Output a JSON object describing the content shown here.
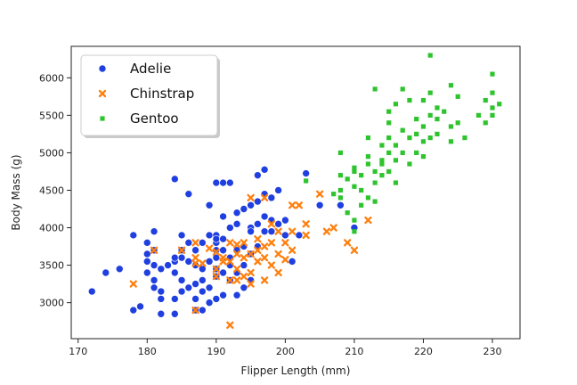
{
  "chart_data": {
    "type": "scatter",
    "xlabel": "Flipper Length (mm)",
    "ylabel": "Body Mass (g)",
    "xlim": [
      169,
      234
    ],
    "ylim": [
      2520,
      6420
    ],
    "xticks": [
      170,
      180,
      190,
      200,
      210,
      220,
      230
    ],
    "yticks": [
      3000,
      3500,
      4000,
      4500,
      5000,
      5500,
      6000
    ],
    "grid": false,
    "legend_placement": "top-left",
    "series": [
      {
        "name": "Adelie",
        "marker": "circle",
        "color": "#1f3fe0",
        "points": [
          [
            172,
            3150
          ],
          [
            174,
            3400
          ],
          [
            176,
            3450
          ],
          [
            178,
            3900
          ],
          [
            178,
            2900
          ],
          [
            179,
            2950
          ],
          [
            180,
            3800
          ],
          [
            180,
            3650
          ],
          [
            180,
            3550
          ],
          [
            180,
            3400
          ],
          [
            181,
            3500
          ],
          [
            181,
            3950
          ],
          [
            181,
            3700
          ],
          [
            181,
            3300
          ],
          [
            181,
            3200
          ],
          [
            182,
            3050
          ],
          [
            182,
            3450
          ],
          [
            182,
            3150
          ],
          [
            182,
            2850
          ],
          [
            183,
            3500
          ],
          [
            184,
            3550
          ],
          [
            184,
            3600
          ],
          [
            184,
            4650
          ],
          [
            184,
            3400
          ],
          [
            184,
            3050
          ],
          [
            184,
            2850
          ],
          [
            185,
            3700
          ],
          [
            185,
            3300
          ],
          [
            185,
            3900
          ],
          [
            185,
            3600
          ],
          [
            185,
            3150
          ],
          [
            186,
            4450
          ],
          [
            186,
            3800
          ],
          [
            186,
            3550
          ],
          [
            186,
            3200
          ],
          [
            187,
            3500
          ],
          [
            187,
            3700
          ],
          [
            187,
            3250
          ],
          [
            187,
            3050
          ],
          [
            187,
            2900
          ],
          [
            188,
            3800
          ],
          [
            188,
            3450
          ],
          [
            188,
            3300
          ],
          [
            188,
            3150
          ],
          [
            188,
            2900
          ],
          [
            189,
            4300
          ],
          [
            189,
            3550
          ],
          [
            189,
            3900
          ],
          [
            189,
            3200
          ],
          [
            189,
            3000
          ],
          [
            190,
            3900
          ],
          [
            190,
            3800
          ],
          [
            190,
            3700
          ],
          [
            190,
            3600
          ],
          [
            190,
            3450
          ],
          [
            190,
            3350
          ],
          [
            190,
            3050
          ],
          [
            190,
            3850
          ],
          [
            190,
            4600
          ],
          [
            191,
            4600
          ],
          [
            191,
            4150
          ],
          [
            191,
            3850
          ],
          [
            191,
            3700
          ],
          [
            191,
            3400
          ],
          [
            191,
            3100
          ],
          [
            192,
            4000
          ],
          [
            192,
            3600
          ],
          [
            192,
            3500
          ],
          [
            192,
            3300
          ],
          [
            192,
            4600
          ],
          [
            193,
            4050
          ],
          [
            193,
            3700
          ],
          [
            193,
            3400
          ],
          [
            193,
            3100
          ],
          [
            193,
            4200
          ],
          [
            194,
            4250
          ],
          [
            194,
            3750
          ],
          [
            194,
            3500
          ],
          [
            194,
            3200
          ],
          [
            195,
            4300
          ],
          [
            195,
            4000
          ],
          [
            195,
            3950
          ],
          [
            195,
            3650
          ],
          [
            195,
            3300
          ],
          [
            196,
            4350
          ],
          [
            196,
            4050
          ],
          [
            196,
            3750
          ],
          [
            196,
            4700
          ],
          [
            197,
            4450
          ],
          [
            197,
            4150
          ],
          [
            197,
            3950
          ],
          [
            197,
            4775
          ],
          [
            198,
            4400
          ],
          [
            198,
            4100
          ],
          [
            198,
            3950
          ],
          [
            199,
            4050
          ],
          [
            199,
            4500
          ],
          [
            200,
            3900
          ],
          [
            200,
            4100
          ],
          [
            201,
            3550
          ],
          [
            202,
            3900
          ],
          [
            203,
            4725
          ],
          [
            205,
            4300
          ],
          [
            210,
            4000
          ],
          [
            208,
            4300
          ]
        ]
      },
      {
        "name": "Chinstrap",
        "marker": "x",
        "color": "#ff7f0e",
        "points": [
          [
            178,
            3250
          ],
          [
            181,
            3700
          ],
          [
            185,
            3700
          ],
          [
            187,
            2900
          ],
          [
            187,
            3525
          ],
          [
            187,
            3600
          ],
          [
            187,
            3800
          ],
          [
            188,
            3525
          ],
          [
            189,
            3725
          ],
          [
            190,
            3450
          ],
          [
            190,
            3350
          ],
          [
            190,
            3675
          ],
          [
            191,
            3600
          ],
          [
            191,
            3550
          ],
          [
            192,
            3300
          ],
          [
            192,
            2700
          ],
          [
            192,
            3550
          ],
          [
            192,
            3800
          ],
          [
            193,
            3650
          ],
          [
            193,
            3775
          ],
          [
            193,
            3450
          ],
          [
            193,
            3300
          ],
          [
            194,
            3800
          ],
          [
            194,
            3600
          ],
          [
            194,
            3350
          ],
          [
            195,
            3650
          ],
          [
            195,
            4400
          ],
          [
            195,
            3400
          ],
          [
            195,
            3250
          ],
          [
            196,
            3850
          ],
          [
            196,
            3550
          ],
          [
            196,
            3700
          ],
          [
            197,
            3600
          ],
          [
            197,
            3750
          ],
          [
            197,
            3300
          ],
          [
            197,
            4400
          ],
          [
            198,
            3800
          ],
          [
            198,
            4050
          ],
          [
            198,
            3500
          ],
          [
            199,
            3650
          ],
          [
            199,
            3400
          ],
          [
            199,
            3950
          ],
          [
            200,
            3800
          ],
          [
            200,
            3575
          ],
          [
            201,
            3950
          ],
          [
            201,
            4300
          ],
          [
            201,
            3700
          ],
          [
            202,
            4300
          ],
          [
            203,
            4050
          ],
          [
            203,
            3900
          ],
          [
            205,
            4450
          ],
          [
            206,
            3950
          ],
          [
            207,
            4000
          ],
          [
            209,
            3800
          ],
          [
            210,
            3700
          ],
          [
            212,
            4100
          ]
        ]
      },
      {
        "name": "Gentoo",
        "marker": "square",
        "color": "#2ec42e",
        "points": [
          [
            203,
            4625
          ],
          [
            207,
            4450
          ],
          [
            208,
            4400
          ],
          [
            208,
            4500
          ],
          [
            208,
            4700
          ],
          [
            208,
            5000
          ],
          [
            209,
            4650
          ],
          [
            209,
            4200
          ],
          [
            210,
            4800
          ],
          [
            210,
            4550
          ],
          [
            210,
            4750
          ],
          [
            210,
            4100
          ],
          [
            210,
            3950
          ],
          [
            211,
            4700
          ],
          [
            211,
            4500
          ],
          [
            211,
            4300
          ],
          [
            212,
            4850
          ],
          [
            212,
            4400
          ],
          [
            212,
            4950
          ],
          [
            212,
            5200
          ],
          [
            213,
            4750
          ],
          [
            213,
            4600
          ],
          [
            213,
            4350
          ],
          [
            213,
            5850
          ],
          [
            214,
            5100
          ],
          [
            214,
            4900
          ],
          [
            214,
            4700
          ],
          [
            214,
            4850
          ],
          [
            215,
            5200
          ],
          [
            215,
            5000
          ],
          [
            215,
            4750
          ],
          [
            215,
            5550
          ],
          [
            215,
            5400
          ],
          [
            216,
            4900
          ],
          [
            216,
            5100
          ],
          [
            216,
            4600
          ],
          [
            216,
            5650
          ],
          [
            217,
            5300
          ],
          [
            217,
            5000
          ],
          [
            217,
            5850
          ],
          [
            218,
            5700
          ],
          [
            218,
            5200
          ],
          [
            218,
            4850
          ],
          [
            219,
            5250
          ],
          [
            219,
            5450
          ],
          [
            219,
            5000
          ],
          [
            220,
            5350
          ],
          [
            220,
            5700
          ],
          [
            220,
            5150
          ],
          [
            220,
            4950
          ],
          [
            221,
            5800
          ],
          [
            221,
            6300
          ],
          [
            221,
            5500
          ],
          [
            221,
            5200
          ],
          [
            222,
            5250
          ],
          [
            222,
            5450
          ],
          [
            222,
            5600
          ],
          [
            223,
            5550
          ],
          [
            224,
            5350
          ],
          [
            224,
            5900
          ],
          [
            224,
            5150
          ],
          [
            225,
            5400
          ],
          [
            225,
            5750
          ],
          [
            226,
            5200
          ],
          [
            228,
            5500
          ],
          [
            229,
            5700
          ],
          [
            229,
            5400
          ],
          [
            230,
            5800
          ],
          [
            230,
            5600
          ],
          [
            230,
            6050
          ],
          [
            230,
            5500
          ],
          [
            231,
            5650
          ]
        ]
      }
    ]
  }
}
